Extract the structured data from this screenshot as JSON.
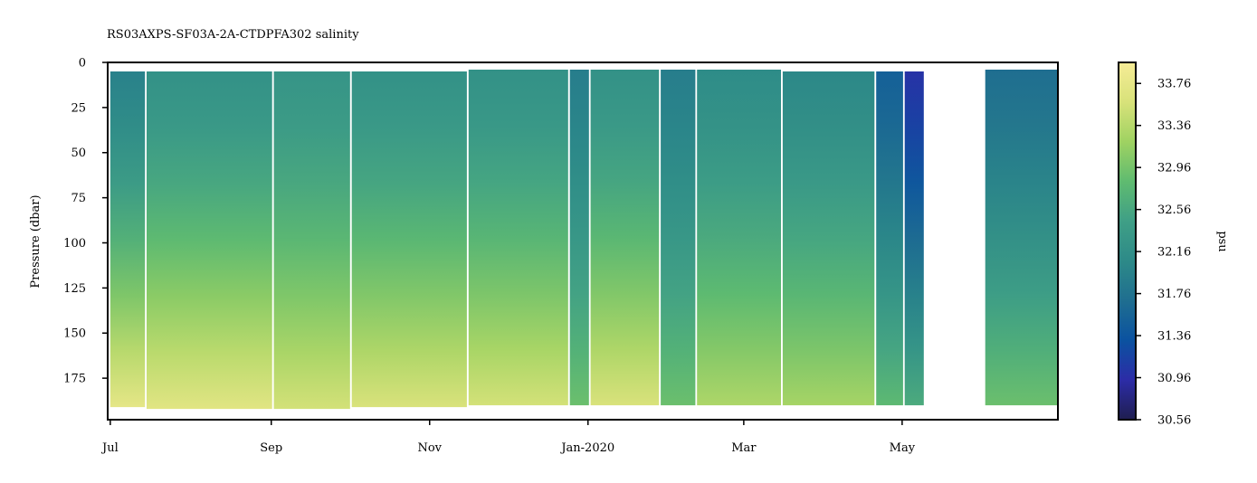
{
  "chart_data": {
    "type": "heatmap",
    "title": "RS03AXPS-SF03A-2A-CTDPFA302 salinity",
    "xlabel": "",
    "ylabel": "Pressure (dbar)",
    "colorbar_label": "psu",
    "x_ticks": [
      "Jul",
      "Sep",
      "Nov",
      "Jan-2020",
      "Mar",
      "May"
    ],
    "x_tick_dates": [
      "2019-07-01",
      "2019-09-01",
      "2019-11-01",
      "2020-01-01",
      "2020-03-01",
      "2020-05-01"
    ],
    "xlim": [
      "2019-06-30",
      "2020-06-30"
    ],
    "y_ticks": [
      0,
      25,
      50,
      75,
      100,
      125,
      150,
      175
    ],
    "ylim": [
      198,
      0
    ],
    "y_inverted": true,
    "colorbar_ticks": [
      30.56,
      30.96,
      31.36,
      31.76,
      32.16,
      32.56,
      32.96,
      33.36,
      33.76
    ],
    "colorbar_range": [
      30.56,
      33.96
    ],
    "colormap": [
      "#1f1e4f",
      "#2c2ca7",
      "#0b52a0",
      "#1f6e90",
      "#2d8a88",
      "#3f9f86",
      "#5fbb70",
      "#9fd262",
      "#d8e27a",
      "#f6ec96"
    ],
    "profile_depth_range": [
      5,
      191
    ],
    "segments": [
      {
        "start": "2019-07-01",
        "end": "2019-07-14",
        "surface": 31.95,
        "bottom": 33.75,
        "top_depth": 5,
        "bottom_depth": 191
      },
      {
        "start": "2019-07-15",
        "end": "2019-09-01",
        "surface": 32.2,
        "bottom": 33.7,
        "top_depth": 5,
        "bottom_depth": 192
      },
      {
        "start": "2019-09-02",
        "end": "2019-10-01",
        "surface": 32.25,
        "bottom": 33.55,
        "top_depth": 5,
        "bottom_depth": 192
      },
      {
        "start": "2019-10-02",
        "end": "2019-11-15",
        "surface": 32.2,
        "bottom": 33.6,
        "top_depth": 5,
        "bottom_depth": 191
      },
      {
        "start": "2019-11-16",
        "end": "2019-12-24",
        "surface": 32.2,
        "bottom": 33.55,
        "top_depth": 4,
        "bottom_depth": 190
      },
      {
        "start": "2019-12-25",
        "end": "2020-01-01",
        "surface": 31.9,
        "bottom": 32.9,
        "top_depth": 4,
        "bottom_depth": 190
      },
      {
        "start": "2020-01-02",
        "end": "2020-01_28",
        "surface": 32.2,
        "bottom": 33.6,
        "top_depth": 4,
        "bottom_depth": 190
      },
      {
        "start": "2020-01-29",
        "end": "2020-02-11",
        "surface": 31.9,
        "bottom": 32.9,
        "top_depth": 4,
        "bottom_depth": 190
      },
      {
        "start": "2020-02-12",
        "end": "2020-03-15",
        "surface": 32.1,
        "bottom": 33.3,
        "top_depth": 4,
        "bottom_depth": 190
      },
      {
        "start": "2020-03-16",
        "end": "2020-04-20",
        "surface": 32.05,
        "bottom": 33.25,
        "top_depth": 5,
        "bottom_depth": 190
      },
      {
        "start": "2020-04-21",
        "end": "2020-05-01",
        "surface": 31.5,
        "bottom": 32.8,
        "top_depth": 5,
        "bottom_depth": 190
      },
      {
        "start": "2020-05-02",
        "end": "2020-05-09",
        "surface": 31.0,
        "bottom": 32.6,
        "top_depth": 5,
        "bottom_depth": 190
      },
      {
        "start": "2020-06-02",
        "end": "2020-06-30",
        "surface": 31.7,
        "bottom": 32.9,
        "top_depth": 4,
        "bottom_depth": 190
      }
    ],
    "grid": false,
    "legend": "colorbar-right"
  }
}
